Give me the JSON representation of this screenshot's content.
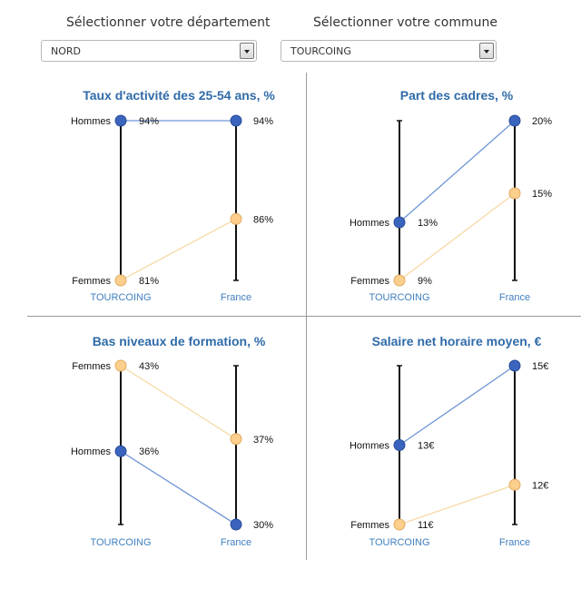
{
  "selectors": {
    "departement": {
      "label": "Sélectionner votre département",
      "value": "NORD"
    },
    "commune": {
      "label": "Sélectionner votre commune",
      "value": "TOURCOING"
    }
  },
  "colors": {
    "hommes": "#3a64bd",
    "hommes_line": "#6f96d6",
    "femmes": "#fdcf8c",
    "femmes_line": "#f7d9a6",
    "title": "#2f6ba8",
    "axis_label": "#3f7fbf"
  },
  "chart_data": [
    {
      "type": "slope",
      "title": "Taux d'activité des 25-54 ans, %",
      "categories": [
        "TOURCOING",
        "France"
      ],
      "ylim": [
        81,
        94
      ],
      "series": [
        {
          "name": "Hommes",
          "values": [
            94,
            94
          ],
          "labels": [
            "94%",
            "94%"
          ]
        },
        {
          "name": "Femmes",
          "values": [
            81,
            86
          ],
          "labels": [
            "81%",
            "86%"
          ]
        }
      ]
    },
    {
      "type": "slope",
      "title": "Part des cadres, %",
      "categories": [
        "TOURCOING",
        "France"
      ],
      "ylim": [
        9,
        20
      ],
      "series": [
        {
          "name": "Hommes",
          "values": [
            13,
            20
          ],
          "labels": [
            "13%",
            "20%"
          ]
        },
        {
          "name": "Femmes",
          "values": [
            9,
            15
          ],
          "labels": [
            "9%",
            "15%"
          ]
        }
      ]
    },
    {
      "type": "slope",
      "title": "Bas niveaux de formation, %",
      "categories": [
        "TOURCOING",
        "France"
      ],
      "ylim": [
        30,
        43
      ],
      "series": [
        {
          "name": "Hommes",
          "values": [
            36,
            30
          ],
          "labels": [
            "36%",
            "30%"
          ]
        },
        {
          "name": "Femmes",
          "values": [
            43,
            37
          ],
          "labels": [
            "43%",
            "37%"
          ]
        }
      ]
    },
    {
      "type": "slope",
      "title": "Salaire net horaire moyen, €",
      "categories": [
        "TOURCOING",
        "France"
      ],
      "ylim": [
        11,
        15
      ],
      "series": [
        {
          "name": "Hommes",
          "values": [
            13,
            15
          ],
          "labels": [
            "13€",
            "15€"
          ]
        },
        {
          "name": "Femmes",
          "values": [
            11,
            12
          ],
          "labels": [
            "11€",
            "12€"
          ]
        }
      ]
    }
  ]
}
